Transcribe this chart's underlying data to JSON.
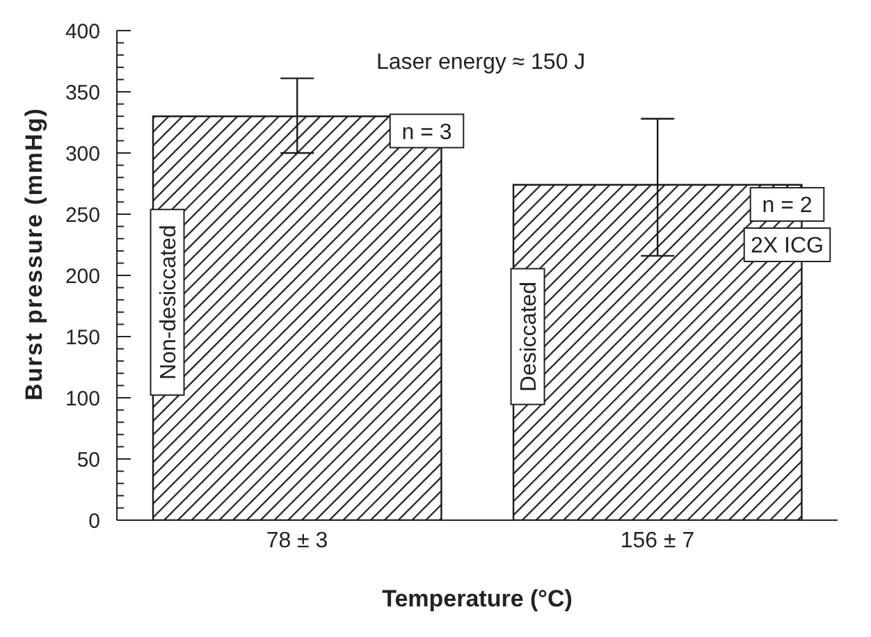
{
  "chart_data": {
    "type": "bar",
    "xlabel": "Temperature (°C)",
    "ylabel": "Burst pressure (mmHg)",
    "categories": [
      "78 ± 3",
      "156 ± 7"
    ],
    "values": [
      330,
      274
    ],
    "color": "#1a1a1a",
    "errors": [
      [
        300,
        361
      ],
      [
        216,
        328
      ]
    ],
    "ylim": [
      0,
      400
    ],
    "yticks": [
      0,
      {
        "value": 10,
        "label": null
      },
      {
        "value": 20,
        "label": null
      },
      {
        "value": 30,
        "label": null
      },
      {
        "value": 40,
        "label": null
      },
      50,
      {
        "value": 60,
        "label": null
      },
      {
        "value": 70,
        "label": null
      },
      {
        "value": 80,
        "label": null
      },
      {
        "value": 90,
        "label": null
      },
      100,
      {
        "value": 110,
        "label": null
      },
      {
        "value": 120,
        "label": null
      },
      {
        "value": 130,
        "label": null
      },
      {
        "value": 140,
        "label": null
      },
      150,
      {
        "value": 160,
        "label": null
      },
      {
        "value": 170,
        "label": null
      },
      {
        "value": 180,
        "label": null
      },
      {
        "value": 190,
        "label": null
      },
      200,
      {
        "value": 210,
        "label": null
      },
      {
        "value": 220,
        "label": null
      },
      {
        "value": 230,
        "label": null
      },
      {
        "value": 240,
        "label": null
      },
      250,
      {
        "value": 260,
        "label": null
      },
      {
        "value": 270,
        "label": null
      },
      {
        "value": 280,
        "label": null
      },
      {
        "value": 290,
        "label": null
      },
      300,
      {
        "value": 310,
        "label": null
      },
      {
        "value": 320,
        "label": null
      },
      {
        "value": 330,
        "label": null
      },
      {
        "value": 340,
        "label": null
      },
      350,
      {
        "value": 360,
        "label": null
      },
      {
        "value": 370,
        "label": null
      },
      {
        "value": 380,
        "label": null
      },
      {
        "value": 390,
        "label": null
      },
      400
    ],
    "grid": false,
    "legend": false,
    "annotations": [
      "Laser energy ≈ 150 J",
      "n = 3",
      "Non-desiccated",
      "n = 2",
      "2X ICG",
      "Desiccated"
    ]
  }
}
